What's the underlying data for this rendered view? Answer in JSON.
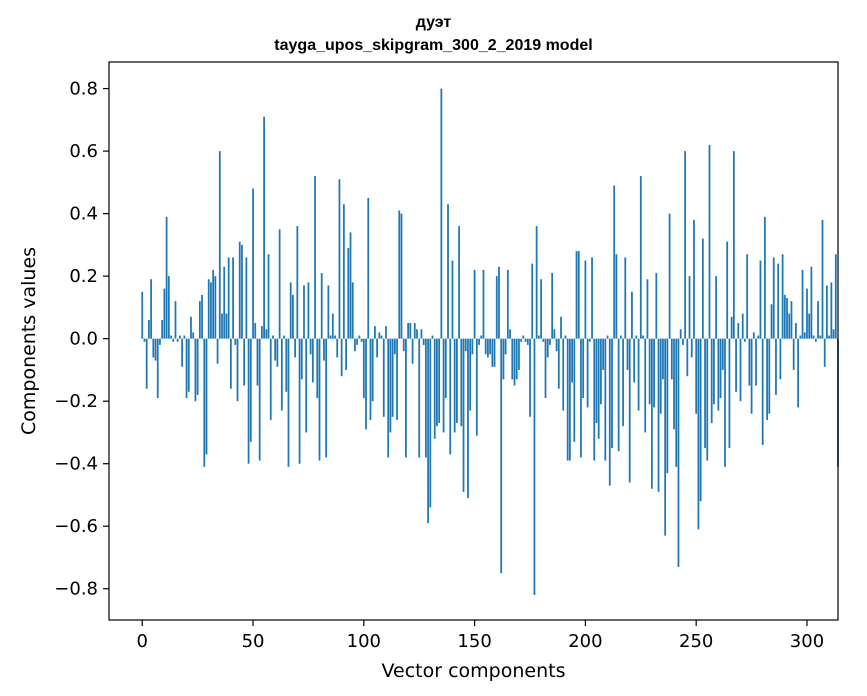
{
  "chart_data": {
    "type": "bar",
    "title_lines": [
      "дуэт",
      "tayga_upos_skipgram_300_2_2019 model"
    ],
    "xlabel": "Vector components",
    "ylabel": "Components values",
    "xlim": [
      -15,
      314
    ],
    "ylim": [
      -0.9,
      0.885
    ],
    "xticks": [
      0,
      50,
      100,
      150,
      200,
      250,
      300
    ],
    "xtick_labels": [
      "0",
      "50",
      "100",
      "150",
      "200",
      "250",
      "300"
    ],
    "yticks": [
      -0.8,
      -0.6,
      -0.4,
      -0.2,
      0.0,
      0.2,
      0.4,
      0.6,
      0.8
    ],
    "ytick_labels": [
      "−0.8",
      "−0.6",
      "−0.4",
      "−0.2",
      "0.0",
      "0.2",
      "0.4",
      "0.6",
      "0.8"
    ],
    "bar_color": "#1f77b4",
    "grid": false,
    "values": [
      0.15,
      -0.01,
      -0.16,
      0.06,
      0.19,
      -0.06,
      -0.07,
      -0.19,
      -0.02,
      0.06,
      0.16,
      0.39,
      0.2,
      0.01,
      -0.01,
      0.12,
      -0.01,
      0.01,
      -0.09,
      0.01,
      -0.19,
      -0.17,
      0.07,
      0.02,
      -0.2,
      -0.18,
      0.12,
      0.14,
      -0.41,
      -0.37,
      0.19,
      0.18,
      0.22,
      0.2,
      -0.08,
      0.6,
      0.08,
      0.23,
      0.08,
      0.26,
      -0.16,
      0.26,
      -0.02,
      -0.2,
      0.31,
      0.3,
      -0.15,
      0.26,
      -0.4,
      -0.33,
      0.48,
      0.05,
      -0.15,
      -0.39,
      0.04,
      0.71,
      0.03,
      0.27,
      -0.26,
      0.01,
      -0.07,
      -0.09,
      0.35,
      -0.23,
      0.01,
      -0.17,
      -0.41,
      0.18,
      0.14,
      -0.06,
      0.36,
      -0.4,
      -0.13,
      0.17,
      -0.3,
      0.18,
      -0.05,
      -0.14,
      0.52,
      -0.19,
      -0.39,
      0.21,
      -0.07,
      -0.38,
      0.17,
      0.01,
      0.08,
      0.01,
      -0.06,
      0.51,
      -0.12,
      0.43,
      -0.1,
      0.29,
      0.34,
      0.18,
      -0.04,
      -0.02,
      0.01,
      -0.01,
      -0.19,
      -0.29,
      0.45,
      -0.26,
      -0.2,
      0.04,
      -0.06,
      0.02,
      0.01,
      -0.25,
      0.04,
      -0.38,
      -0.3,
      -0.25,
      -0.05,
      -0.26,
      0.41,
      0.4,
      -0.04,
      -0.38,
      0.05,
      0.05,
      -0.08,
      0.05,
      0.03,
      -0.38,
      0.03,
      -0.02,
      -0.38,
      -0.59,
      -0.54,
      0.01,
      -0.32,
      -0.28,
      -0.27,
      0.8,
      -0.3,
      -0.19,
      0.43,
      -0.37,
      0.25,
      -0.3,
      -0.27,
      0.36,
      -0.28,
      -0.49,
      -0.04,
      -0.51,
      -0.23,
      -0.05,
      0.22,
      -0.31,
      -0.02,
      0.01,
      0.22,
      -0.05,
      -0.06,
      -0.05,
      -0.09,
      -0.09,
      0.2,
      0.23,
      -0.75,
      -0.13,
      -0.05,
      0.22,
      0.03,
      -0.13,
      -0.15,
      -0.13,
      -0.1,
      -0.01,
      0.01,
      -0.01,
      -0.02,
      -0.25,
      0.24,
      -0.82,
      0.36,
      0.01,
      0.19,
      -0.01,
      -0.19,
      -0.06,
      -0.02,
      0.21,
      0.03,
      -0.04,
      -0.16,
      0.07,
      -0.23,
      0.01,
      -0.39,
      -0.39,
      -0.14,
      -0.33,
      0.28,
      0.28,
      -0.38,
      -0.19,
      0.25,
      -0.22,
      -0.01,
      0.26,
      -0.39,
      -0.27,
      -0.32,
      -0.21,
      -0.1,
      -0.39,
      0.01,
      -0.47,
      -0.35,
      0.49,
      0.27,
      -0.36,
      0.01,
      -0.28,
      0.26,
      -0.1,
      -0.46,
      0.15,
      -0.14,
      0.01,
      -0.23,
      0.52,
      0.01,
      -0.3,
      0.19,
      -0.21,
      -0.48,
      -0.22,
      0.21,
      -0.49,
      -0.24,
      -0.13,
      -0.63,
      -0.43,
      0.4,
      -0.13,
      -0.29,
      -0.41,
      -0.73,
      0.03,
      -0.02,
      0.6,
      -0.12,
      0.2,
      -0.06,
      0.38,
      -0.24,
      -0.61,
      -0.52,
      0.32,
      -0.35,
      -0.39,
      0.62,
      -0.27,
      -0.21,
      0.2,
      -0.23,
      -0.19,
      -0.1,
      -0.41,
      0.31,
      -0.35,
      0.07,
      0.6,
      -0.17,
      0.05,
      -0.2,
      0.08,
      -0.01,
      0.27,
      -0.15,
      -0.24,
      0.02,
      -0.15,
      0.01,
      0.25,
      -0.34,
      0.39,
      -0.26,
      -0.24,
      0.11,
      0.26,
      -0.18,
      0.24,
      -0.13,
      0.27,
      0.14,
      0.13,
      0.08,
      0.12,
      -0.1,
      0.05,
      -0.22,
      0.01,
      0.22,
      0.02,
      0.16,
      0.08,
      0.23,
      0.01,
      -0.01,
      0.12,
      0.01,
      0.38,
      -0.09,
      0.17,
      0.01,
      0.18,
      0.03,
      0.27,
      -0.41
    ]
  }
}
